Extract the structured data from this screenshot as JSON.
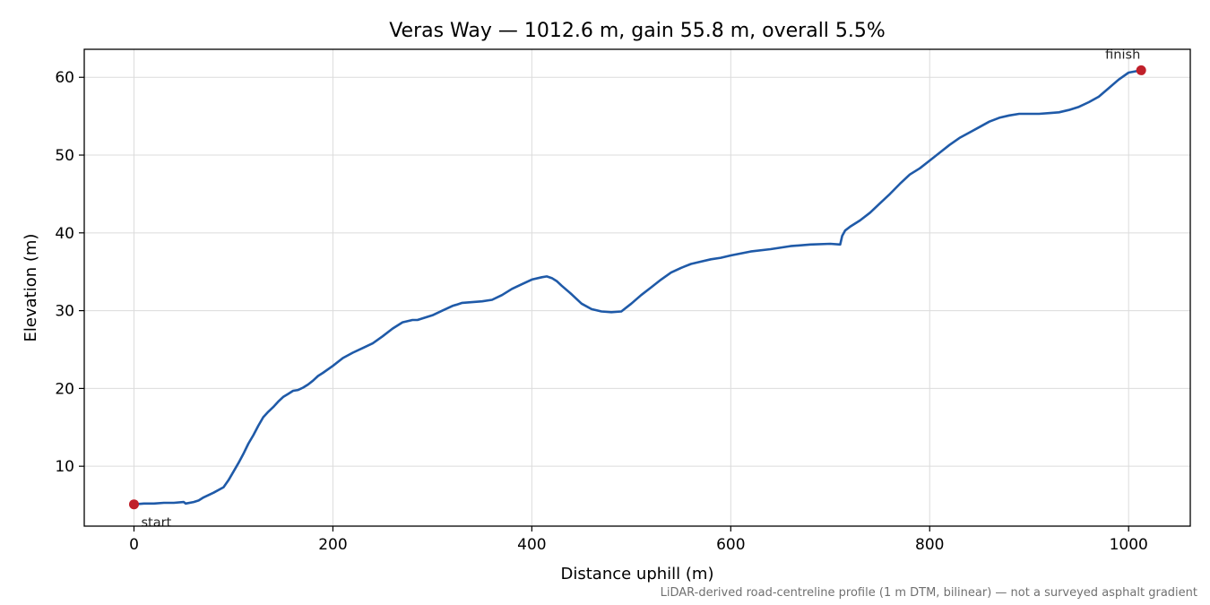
{
  "chart_data": {
    "type": "line",
    "title": "Veras Way — 1012.6 m, gain 55.8 m, overall 5.5%",
    "xlabel": "Distance uphill (m)",
    "ylabel": "Elevation (m)",
    "footnote": "LiDAR-derived road-centreline profile (1 m DTM, bilinear) — not a surveyed asphalt gradient",
    "xlim": [
      -50,
      1062
    ],
    "ylim": [
      2.3,
      63.6
    ],
    "xticks": [
      0,
      200,
      400,
      600,
      800,
      1000
    ],
    "yticks": [
      10,
      20,
      30,
      40,
      50,
      60
    ],
    "grid": true,
    "line_color": "#1f5aa8",
    "marker_color": "#c0202a",
    "series": [
      {
        "x": [
          0,
          10,
          20,
          30,
          40,
          50,
          52,
          60,
          65,
          70,
          80,
          90,
          95,
          100,
          105,
          110,
          115,
          120,
          125,
          130,
          135,
          140,
          145,
          150,
          155,
          160,
          165,
          170,
          175,
          180,
          185,
          190,
          200,
          210,
          220,
          230,
          240,
          250,
          260,
          270,
          280,
          285,
          290,
          300,
          310,
          320,
          325,
          330,
          340,
          350,
          360,
          370,
          380,
          390,
          400,
          410,
          415,
          420,
          425,
          430,
          440,
          450,
          460,
          470,
          480,
          490,
          500,
          510,
          520,
          530,
          540,
          550,
          560,
          570,
          580,
          590,
          600,
          620,
          640,
          660,
          680,
          700,
          710,
          712,
          715,
          720,
          730,
          740,
          750,
          760,
          770,
          780,
          790,
          800,
          810,
          820,
          830,
          840,
          850,
          860,
          870,
          880,
          890,
          900,
          910,
          920,
          930,
          940,
          950,
          960,
          970,
          980,
          990,
          1000,
          1012.6
        ],
        "y": [
          5.1,
          5.2,
          5.2,
          5.3,
          5.3,
          5.4,
          5.2,
          5.4,
          5.6,
          6.0,
          6.6,
          7.3,
          8.2,
          9.3,
          10.4,
          11.6,
          12.9,
          14.0,
          15.2,
          16.3,
          17.0,
          17.6,
          18.3,
          18.9,
          19.3,
          19.7,
          19.8,
          20.1,
          20.5,
          21.0,
          21.6,
          22.0,
          22.9,
          23.9,
          24.6,
          25.2,
          25.8,
          26.7,
          27.7,
          28.5,
          28.8,
          28.8,
          29.0,
          29.4,
          30.0,
          30.6,
          30.8,
          31.0,
          31.1,
          31.2,
          31.4,
          32.0,
          32.8,
          33.4,
          34.0,
          34.3,
          34.4,
          34.2,
          33.8,
          33.2,
          32.1,
          30.9,
          30.2,
          29.9,
          29.8,
          29.9,
          30.9,
          32.0,
          33.0,
          34.0,
          34.9,
          35.5,
          36.0,
          36.3,
          36.6,
          36.8,
          37.1,
          37.6,
          37.9,
          38.3,
          38.5,
          38.6,
          38.5,
          39.6,
          40.3,
          40.8,
          41.6,
          42.6,
          43.8,
          45.0,
          46.3,
          47.5,
          48.3,
          49.3,
          50.3,
          51.3,
          52.2,
          52.9,
          53.6,
          54.3,
          54.8,
          55.1,
          55.3,
          55.3,
          55.3,
          55.4,
          55.5,
          55.8,
          56.2,
          56.8,
          57.5,
          58.6,
          59.7,
          60.6,
          60.9
        ]
      }
    ],
    "annotations": [
      {
        "label": "start",
        "x": 0,
        "y": 5.1
      },
      {
        "label": "finish",
        "x": 1012.6,
        "y": 60.9
      }
    ]
  }
}
